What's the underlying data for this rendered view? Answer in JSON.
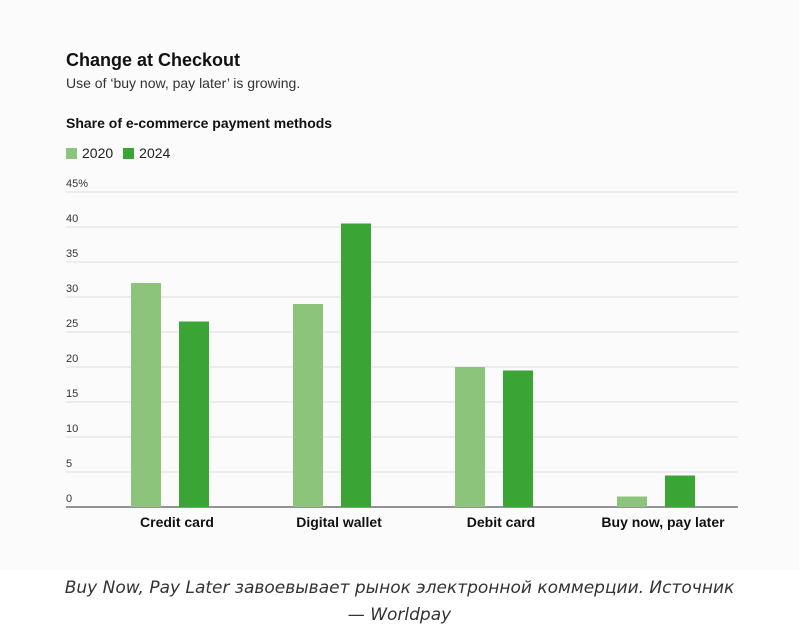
{
  "chart_data": {
    "type": "bar",
    "title": "Change at Checkout",
    "subtitle": "Use of ‘buy now, pay later’ is growing.",
    "ylabel": "Share of e-commerce payment methods",
    "categories": [
      "Credit card",
      "Digital wallet",
      "Debit card",
      "Buy now, pay later"
    ],
    "series": [
      {
        "name": "2020",
        "color": "#8bc47a",
        "values": [
          32,
          29,
          20,
          1.5
        ]
      },
      {
        "name": "2024",
        "color": "#3aa535",
        "values": [
          26.5,
          40.5,
          19.5,
          4.5
        ]
      }
    ],
    "ylim": [
      0,
      45
    ],
    "yticks": [
      0,
      5,
      10,
      15,
      20,
      25,
      30,
      35,
      40,
      45
    ],
    "ytick_labels": [
      "0",
      "5",
      "10",
      "15",
      "20",
      "25",
      "30",
      "35",
      "40",
      "45%"
    ],
    "grid": true,
    "legend_position": "top-left"
  },
  "caption": {
    "line1": "Buy Now, Pay Later завоевывает рынок электронной коммерции. Источник",
    "line2": "— Worldpay"
  }
}
